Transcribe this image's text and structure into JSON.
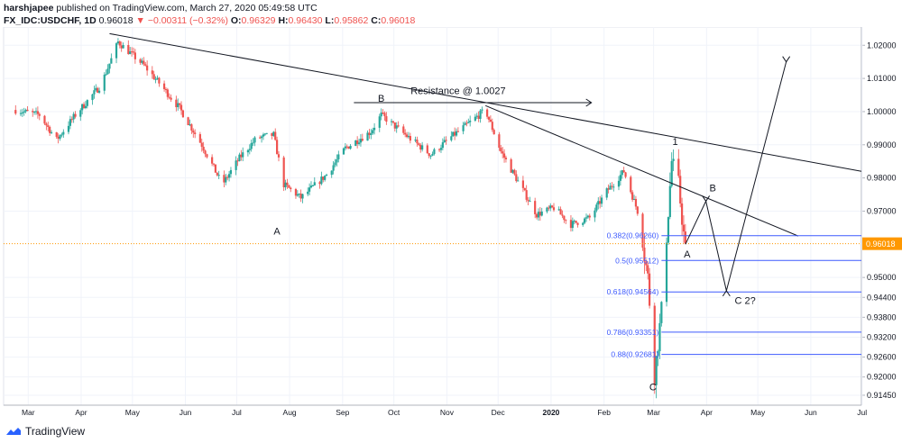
{
  "header": {
    "author": "harshjapee",
    "published": "published on TradingView.com, March 27, 2020 05:49:58 UTC",
    "symbol": "FX_IDC:USDCHF, 1D",
    "last": "0.96018",
    "arrow": "▼",
    "change": "−0.00311 (−0.32%)",
    "o_label": "O:",
    "o": "0.96329",
    "h_label": "H:",
    "h": "0.96430",
    "l_label": "L:",
    "l": "0.95862",
    "c_label": "C:",
    "c": "0.96018"
  },
  "footer": {
    "brand": "TradingView",
    "logo_icon": "tradingview-logo-icon"
  },
  "colors": {
    "up": "#26a69a",
    "down": "#ef5350",
    "fib": "#3d5afe",
    "price_line": "#ff9800",
    "price_tag": "#ff9800"
  },
  "chart_data": {
    "type": "candlestick",
    "x_tick_labels": [
      "Mar",
      "Apr",
      "May",
      "Jun",
      "Jul",
      "Aug",
      "Sep",
      "Oct",
      "Nov",
      "Dec",
      "2020",
      "Feb",
      "Mar",
      "Apr",
      "May",
      "Jun",
      "Jul"
    ],
    "y_tick_labels": [
      "1.02000",
      "1.01000",
      "1.00000",
      "0.99000",
      "0.98000",
      "0.97000",
      "0.95000",
      "0.94400",
      "0.93800",
      "0.93200",
      "0.92600",
      "0.92000",
      "0.91450"
    ],
    "ylim": [
      0.9115,
      1.0255
    ],
    "current_price": "0.96018",
    "ohlc_approx": {
      "note_free": "",
      "path": [
        [
          "2019-03-01",
          1.0005
        ],
        [
          "2019-03-15",
          0.999
        ],
        [
          "2019-03-25",
          0.9915
        ],
        [
          "2019-04-05",
          0.999
        ],
        [
          "2019-04-20",
          1.008
        ],
        [
          "2019-04-30",
          1.021
        ],
        [
          "2019-05-15",
          1.014
        ],
        [
          "2019-05-25",
          1.008
        ],
        [
          "2019-06-05",
          1.001
        ],
        [
          "2019-06-18",
          0.99
        ],
        [
          "2019-06-30",
          0.978
        ],
        [
          "2019-07-10",
          0.986
        ],
        [
          "2019-07-20",
          0.992
        ],
        [
          "2019-07-30",
          0.993
        ],
        [
          "2019-08-05",
          0.978
        ],
        [
          "2019-08-15",
          0.974
        ],
        [
          "2019-08-30",
          0.981
        ],
        [
          "2019-09-10",
          0.989
        ],
        [
          "2019-09-25",
          0.994
        ],
        [
          "2019-10-01",
          0.999
        ],
        [
          "2019-10-15",
          0.993
        ],
        [
          "2019-10-30",
          0.987
        ],
        [
          "2019-11-10",
          0.992
        ],
        [
          "2019-11-20",
          0.996
        ],
        [
          "2019-12-01",
          1.0005
        ],
        [
          "2019-12-10",
          0.988
        ],
        [
          "2019-12-31",
          0.969
        ],
        [
          "2020-01-10",
          0.971
        ],
        [
          "2020-01-20",
          0.966
        ],
        [
          "2020-01-31",
          0.968
        ],
        [
          "2020-02-10",
          0.976
        ],
        [
          "2020-02-20",
          0.982
        ],
        [
          "2020-02-28",
          0.97
        ],
        [
          "2020-03-05",
          0.95
        ],
        [
          "2020-03-09",
          0.9205
        ],
        [
          "2020-03-13",
          0.94
        ],
        [
          "2020-03-19",
          0.985
        ],
        [
          "2020-03-23",
          0.978
        ],
        [
          "2020-03-26",
          0.963
        ],
        [
          "2020-03-27",
          0.9602
        ]
      ]
    },
    "fib_levels": [
      {
        "label": "0.382(0.96260)",
        "value": 0.9626
      },
      {
        "label": "0.5(0.95512)",
        "value": 0.95512
      },
      {
        "label": "0.618(0.94564)",
        "value": 0.94564
      },
      {
        "label": "0.786(0.93351)",
        "value": 0.93351
      },
      {
        "label": "0.88(0.92681)",
        "value": 0.92681
      }
    ],
    "annotations": [
      {
        "text": "Resistance @ 1.0027"
      },
      {
        "text": "A"
      },
      {
        "text": "B"
      },
      {
        "text": "1"
      },
      {
        "text": "B"
      },
      {
        "text": "A"
      },
      {
        "text": "C"
      },
      {
        "text": "C 2?"
      }
    ]
  }
}
